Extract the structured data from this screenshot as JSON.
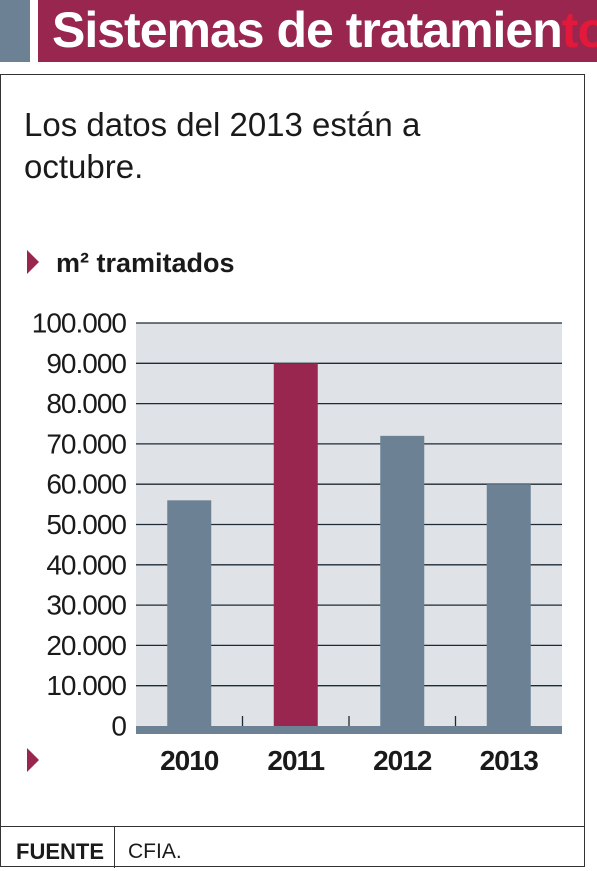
{
  "header": {
    "title_main": "Sistemas de tratamien",
    "title_tail": "to"
  },
  "subtitle": "Los datos del 2013 están a octubre.",
  "footer": {
    "source_label": "FUENTE",
    "source_value": "CFIA."
  },
  "colors": {
    "brand": "#98264f",
    "bar_default": "#6d8194",
    "bar_highlight": "#98264f",
    "plot_background": "#dfe3e8"
  },
  "chart_data": {
    "type": "bar",
    "title": "m² tramitados",
    "xlabel": "",
    "ylabel": "",
    "categories": [
      "2010",
      "2011",
      "2012",
      "2013"
    ],
    "values": [
      56000,
      90000,
      72000,
      60000
    ],
    "highlight": "2011",
    "ylim": [
      0,
      100000
    ],
    "yticks": [
      0,
      10000,
      20000,
      30000,
      40000,
      50000,
      60000,
      70000,
      80000,
      90000,
      100000
    ],
    "ytick_labels": [
      "0",
      "10.000",
      "20.000",
      "30.000",
      "40.000",
      "50.000",
      "60.000",
      "70.000",
      "80.000",
      "90.000",
      "100.000"
    ],
    "grid": true,
    "legend": "none"
  }
}
